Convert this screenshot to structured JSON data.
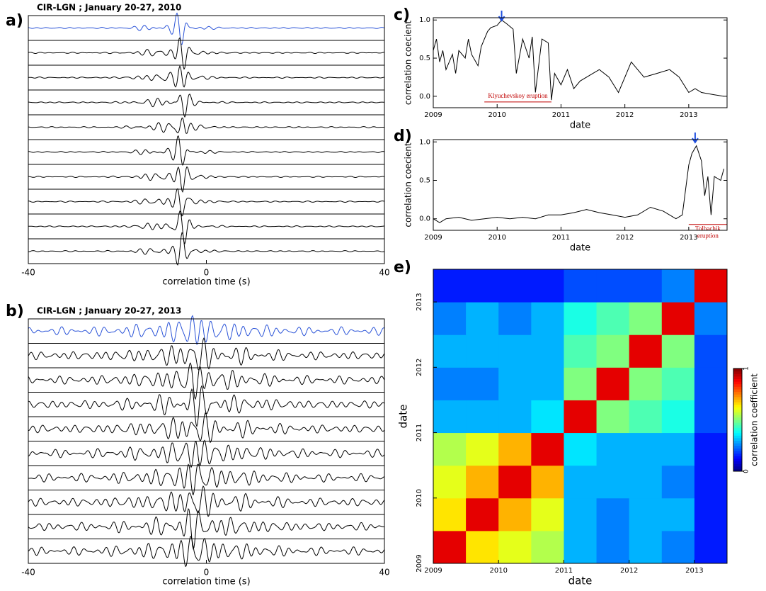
{
  "chart_data": [
    {
      "type": "waveform",
      "label": "a)",
      "title": "CIR-LGN ; January 20-27, 2010",
      "xlabel": "correlation time (s)",
      "xlim": [
        -40,
        40
      ],
      "xticks": [
        -40,
        0,
        40
      ],
      "reference_color": "#2b54d8",
      "trace_color": "#000000"
    },
    {
      "type": "waveform",
      "label": "b)",
      "title": "CIR-LGN ; January 20-27, 2013",
      "xlabel": "correlation time (s)",
      "xlim": [
        -40,
        40
      ],
      "xticks": [
        -40,
        0,
        40
      ],
      "reference_color": "#2b54d8",
      "trace_color": "#000000"
    },
    {
      "type": "line",
      "label": "c)",
      "xlabel": "date",
      "ylabel": "correlation coecient",
      "color": "#000000",
      "x": [
        2009.0,
        2009.05,
        2009.1,
        2009.15,
        2009.2,
        2009.3,
        2009.35,
        2009.4,
        2009.5,
        2009.55,
        2009.6,
        2009.7,
        2009.75,
        2009.8,
        2009.85,
        2009.9,
        2010.0,
        2010.07,
        2010.15,
        2010.25,
        2010.3,
        2010.4,
        2010.5,
        2010.55,
        2010.6,
        2010.7,
        2010.8,
        2010.85,
        2010.9,
        2011.0,
        2011.1,
        2011.2,
        2011.3,
        2011.5,
        2011.6,
        2011.75,
        2011.9,
        2012.0,
        2012.1,
        2012.2,
        2012.3,
        2012.5,
        2012.7,
        2012.85,
        2013.0,
        2013.1,
        2013.2,
        2013.4,
        2013.55
      ],
      "values": [
        0.6,
        0.75,
        0.45,
        0.6,
        0.35,
        0.55,
        0.3,
        0.6,
        0.5,
        0.75,
        0.55,
        0.4,
        0.65,
        0.75,
        0.85,
        0.9,
        0.93,
        1.0,
        0.95,
        0.88,
        0.3,
        0.75,
        0.5,
        0.78,
        0.05,
        0.75,
        0.7,
        -0.05,
        0.3,
        0.15,
        0.35,
        0.1,
        0.2,
        0.3,
        0.35,
        0.25,
        0.05,
        0.25,
        0.45,
        0.35,
        0.25,
        0.3,
        0.35,
        0.25,
        0.05,
        0.1,
        0.05,
        0.02,
        0.0
      ],
      "xlim": [
        2009,
        2013.6
      ],
      "xticks": [
        2009,
        2010,
        2011,
        2012,
        2013
      ],
      "ylim": [
        -0.15,
        1.03
      ],
      "yticks": [
        {
          "value": 0,
          "label": "0.0"
        },
        0.5,
        {
          "value": 1,
          "label": "1.0"
        }
      ],
      "annotation": {
        "text": "Klyuchevskoy eruption",
        "x0": 2009.8,
        "x1": 2010.85,
        "color": "#c00000"
      },
      "arrow_x": 2010.07,
      "arrow_color": "#1f4fe0"
    },
    {
      "type": "line",
      "label": "d)",
      "xlabel": "date",
      "ylabel": "correlation coecient",
      "color": "#000000",
      "x": [
        2009.0,
        2009.1,
        2009.2,
        2009.4,
        2009.6,
        2009.8,
        2010.0,
        2010.2,
        2010.4,
        2010.6,
        2010.8,
        2011.0,
        2011.2,
        2011.4,
        2011.6,
        2011.8,
        2012.0,
        2012.2,
        2012.4,
        2012.6,
        2012.8,
        2012.9,
        2013.0,
        2013.05,
        2013.12,
        2013.2,
        2013.25,
        2013.3,
        2013.35,
        2013.4,
        2013.5,
        2013.55
      ],
      "values": [
        0.0,
        -0.05,
        0.0,
        0.02,
        -0.02,
        0.0,
        0.02,
        0.0,
        0.02,
        0.0,
        0.05,
        0.05,
        0.08,
        0.12,
        0.08,
        0.05,
        0.02,
        0.05,
        0.15,
        0.1,
        0.0,
        0.05,
        0.7,
        0.85,
        0.95,
        0.75,
        0.3,
        0.55,
        0.05,
        0.55,
        0.5,
        0.65
      ],
      "xlim": [
        2009,
        2013.6
      ],
      "xticks": [
        2009,
        2010,
        2011,
        2012,
        2013
      ],
      "ylim": [
        -0.15,
        1.03
      ],
      "yticks": [
        {
          "value": 0,
          "label": "0.0"
        },
        0.5,
        {
          "value": 1,
          "label": "1.0"
        }
      ],
      "annotation": {
        "text": "Tolbachik eruption",
        "x0": 2013.0,
        "x1": 2013.6,
        "color": "#c00000"
      },
      "arrow_x": 2013.1,
      "arrow_color": "#1f4fe0"
    },
    {
      "type": "heatmap",
      "label": "e)",
      "xlabel": "date",
      "ylabel": "date",
      "colorbar_label": "correlation coefficient",
      "colormap": "jet",
      "bins": [
        2009,
        2009.5,
        2010,
        2010.5,
        2011,
        2011.5,
        2012,
        2012.5,
        2013,
        2013.5
      ],
      "z": [
        [
          0.9,
          0.65,
          0.6,
          0.55,
          0.3,
          0.25,
          0.3,
          0.25,
          0.15
        ],
        [
          0.65,
          0.9,
          0.7,
          0.6,
          0.3,
          0.25,
          0.3,
          0.3,
          0.15
        ],
        [
          0.6,
          0.7,
          0.9,
          0.7,
          0.3,
          0.3,
          0.3,
          0.25,
          0.15
        ],
        [
          0.55,
          0.6,
          0.7,
          0.9,
          0.35,
          0.3,
          0.3,
          0.3,
          0.15
        ],
        [
          0.3,
          0.3,
          0.3,
          0.35,
          0.9,
          0.5,
          0.45,
          0.4,
          0.2
        ],
        [
          0.25,
          0.25,
          0.3,
          0.3,
          0.5,
          0.9,
          0.5,
          0.45,
          0.2
        ],
        [
          0.3,
          0.3,
          0.3,
          0.3,
          0.45,
          0.5,
          0.9,
          0.5,
          0.2
        ],
        [
          0.25,
          0.3,
          0.25,
          0.3,
          0.4,
          0.45,
          0.5,
          0.9,
          0.25
        ],
        [
          0.15,
          0.15,
          0.15,
          0.15,
          0.2,
          0.2,
          0.2,
          0.25,
          0.9
        ]
      ],
      "xlim": [
        2009,
        2013.5
      ],
      "xticks": [
        2009,
        2010,
        2011,
        2012,
        2013
      ],
      "ylim": [
        2009,
        2013.5
      ],
      "yticks": [
        2009,
        2010,
        2011,
        2012,
        2013
      ],
      "clim": [
        0,
        1
      ],
      "cticks": [
        0,
        1
      ]
    }
  ]
}
